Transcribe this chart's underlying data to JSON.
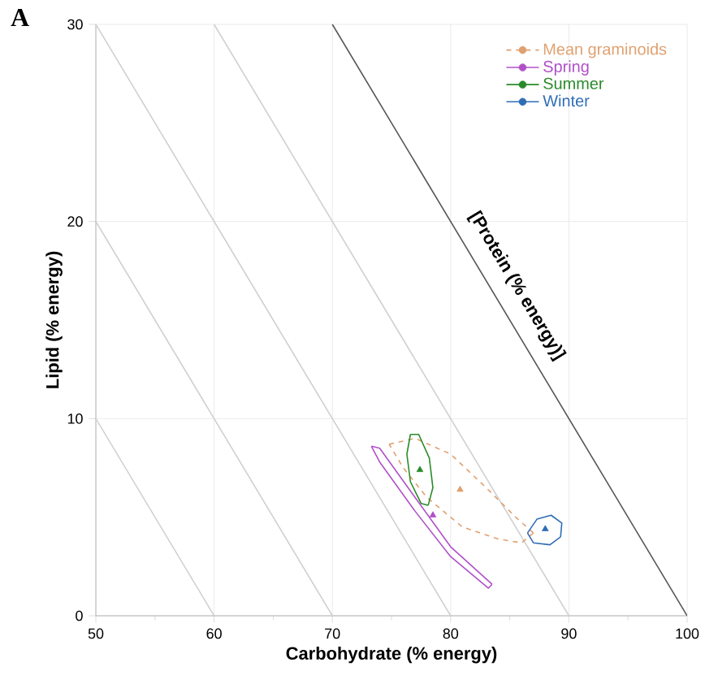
{
  "chart_data": {
    "type": "scatter",
    "xlabel": "Carbohydrate (% energy)",
    "ylabel": "Lipid (% energy)",
    "annotations": [
      "A",
      "[Protein (% energy)]"
    ],
    "xlim": [
      50,
      100
    ],
    "ylim": [
      0,
      30
    ],
    "xticks": [
      50,
      60,
      70,
      80,
      90,
      100
    ],
    "yticks": [
      0,
      10,
      20,
      30
    ],
    "grid": true,
    "legend": "top right",
    "series": [
      {
        "type": "line",
        "color": "#d0d0d0",
        "x": [
          50,
          60
        ],
        "values": [
          10,
          0
        ]
      },
      {
        "type": "line",
        "color": "#d0d0d0",
        "x": [
          50,
          70
        ],
        "values": [
          20,
          0
        ]
      },
      {
        "type": "line",
        "color": "#d0d0d0",
        "x": [
          50,
          80
        ],
        "values": [
          30,
          0
        ]
      },
      {
        "type": "line",
        "color": "#d0d0d0",
        "x": [
          60,
          90
        ],
        "values": [
          30,
          0
        ]
      },
      {
        "type": "line",
        "color": "#555555",
        "x": [
          70,
          100
        ],
        "values": [
          30,
          0
        ]
      },
      {
        "type": "line",
        "color": "#e0a070",
        "line_style": "dashed",
        "x": [
          74.8,
          77,
          80,
          83,
          85.5,
          87
        ],
        "values": [
          8.7,
          9,
          8.2,
          6.5,
          5,
          4.2
        ]
      },
      {
        "type": "line",
        "color": "#e0a070",
        "line_style": "dashed",
        "x": [
          87,
          86,
          84,
          81,
          78,
          76,
          74.8
        ],
        "values": [
          4.2,
          3.7,
          3.9,
          4.5,
          6,
          7.5,
          8.7
        ]
      },
      {
        "type": "line",
        "color": "#b050c8",
        "x": [
          73.3,
          74,
          77,
          80,
          83.5
        ],
        "values": [
          8.6,
          8.5,
          6,
          3.5,
          1.6
        ]
      },
      {
        "type": "line",
        "color": "#b050c8",
        "x": [
          83.5,
          83.2,
          80,
          77,
          74,
          73.3
        ],
        "values": [
          1.6,
          1.4,
          3,
          5.3,
          7.8,
          8.6
        ]
      },
      {
        "type": "line",
        "color": "#2a8a2a",
        "x": [
          76.6,
          77.3,
          78.2,
          78.5,
          78.1
        ],
        "values": [
          9.2,
          9.2,
          8,
          6.5,
          5.6
        ]
      },
      {
        "type": "line",
        "color": "#2a8a2a",
        "x": [
          78.1,
          77.5,
          76.6,
          76.3,
          76.6
        ],
        "values": [
          5.6,
          5.7,
          6.8,
          8.2,
          9.2
        ]
      },
      {
        "type": "line",
        "color": "#2f6db5",
        "x": [
          86.5,
          87.3,
          88.5,
          89.4,
          89.3
        ],
        "values": [
          4.2,
          4.9,
          5.1,
          4.7,
          4
        ]
      },
      {
        "type": "line",
        "color": "#2f6db5",
        "x": [
          89.3,
          88.4,
          87,
          86.5
        ],
        "values": [
          4,
          3.6,
          3.7,
          4.2
        ]
      },
      {
        "name": "Mean graminoids",
        "color": "#e0a070",
        "line_style": "dashed",
        "marker": "triangle",
        "x": [
          80.8
        ],
        "values": [
          6.4
        ]
      },
      {
        "name": "Spring",
        "color": "#b050c8",
        "marker": "triangle",
        "x": [
          78.5
        ],
        "values": [
          5.1
        ]
      },
      {
        "name": "Summer",
        "color": "#2a8a2a",
        "marker": "triangle",
        "x": [
          77.4
        ],
        "values": [
          7.4
        ]
      },
      {
        "name": "Winter",
        "color": "#2f6db5",
        "marker": "triangle",
        "x": [
          88
        ],
        "values": [
          4.4
        ]
      }
    ]
  }
}
